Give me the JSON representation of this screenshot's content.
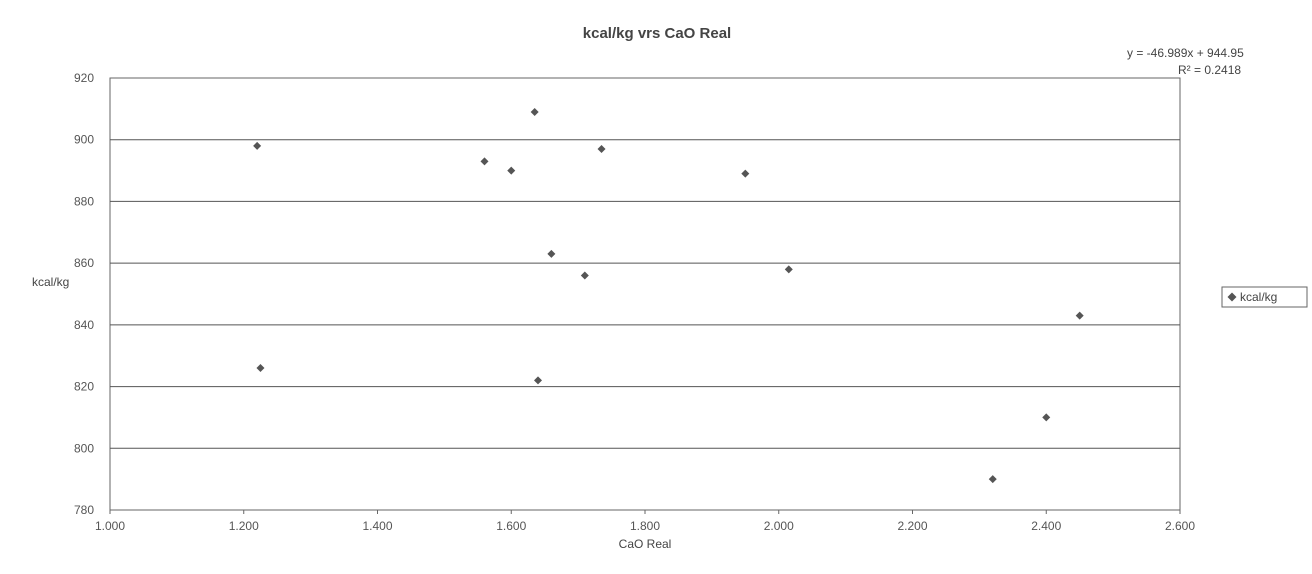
{
  "chart_data": {
    "type": "scatter",
    "title": "kcal/kg vrs CaO Real",
    "xlabel": "CaO Real",
    "ylabel": "kcal/kg",
    "xlim": [
      1.0,
      2.6
    ],
    "ylim": [
      780,
      920
    ],
    "x_ticks": [
      "1.000",
      "1.200",
      "1.400",
      "1.600",
      "1.800",
      "2.000",
      "2.200",
      "2.400",
      "2.600"
    ],
    "y_ticks": [
      "780",
      "800",
      "820",
      "840",
      "860",
      "880",
      "900",
      "920"
    ],
    "grid": "horizontal",
    "legend_position": "right",
    "marker_color": "#555555",
    "series": [
      {
        "name": "kcal/kg",
        "points": [
          {
            "x": 1.22,
            "y": 898
          },
          {
            "x": 1.225,
            "y": 826
          },
          {
            "x": 1.56,
            "y": 893
          },
          {
            "x": 1.6,
            "y": 890
          },
          {
            "x": 1.635,
            "y": 909
          },
          {
            "x": 1.64,
            "y": 822
          },
          {
            "x": 1.66,
            "y": 863
          },
          {
            "x": 1.71,
            "y": 856
          },
          {
            "x": 1.735,
            "y": 897
          },
          {
            "x": 1.95,
            "y": 889
          },
          {
            "x": 2.015,
            "y": 858
          },
          {
            "x": 2.32,
            "y": 790
          },
          {
            "x": 2.4,
            "y": 810
          },
          {
            "x": 2.45,
            "y": 843
          }
        ]
      }
    ],
    "trendline": {
      "equation": "y = -46.989x + 944.95",
      "r_squared": "R² = 0.2418"
    }
  }
}
